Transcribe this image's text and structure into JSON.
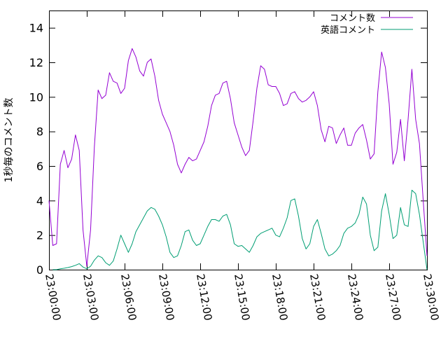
{
  "chart_data": {
    "type": "line",
    "title": "",
    "xlabel": "",
    "ylabel": "1秒毎のコメント数",
    "x_ticks": [
      "23:00:00",
      "23:03:00",
      "23:06:00",
      "23:09:00",
      "23:12:00",
      "23:15:00",
      "23:18:00",
      "23:21:00",
      "23:24:00",
      "23:27:00",
      "23:30:00"
    ],
    "x_range_minutes": [
      0,
      30
    ],
    "ylim": [
      0,
      15
    ],
    "y_ticks": [
      0,
      2,
      4,
      6,
      8,
      10,
      12,
      14
    ],
    "legend_position": "top-right",
    "grid": false,
    "series": [
      {
        "name": "コメント数",
        "color": "#9400d3",
        "x": [
          0.0,
          0.3,
          0.6,
          0.9,
          1.2,
          1.5,
          1.8,
          2.1,
          2.4,
          2.7,
          3.0,
          3.3,
          3.6,
          3.9,
          4.2,
          4.5,
          4.8,
          5.1,
          5.4,
          5.7,
          6.0,
          6.3,
          6.6,
          6.9,
          7.2,
          7.5,
          7.8,
          8.1,
          8.4,
          8.7,
          9.0,
          9.3,
          9.6,
          9.9,
          10.2,
          10.5,
          10.8,
          11.1,
          11.4,
          11.7,
          12.0,
          12.3,
          12.6,
          12.9,
          13.2,
          13.5,
          13.8,
          14.1,
          14.4,
          14.7,
          15.0,
          15.3,
          15.6,
          15.9,
          16.2,
          16.5,
          16.8,
          17.1,
          17.4,
          17.7,
          18.0,
          18.3,
          18.6,
          18.9,
          19.2,
          19.5,
          19.8,
          20.1,
          20.4,
          20.7,
          21.0,
          21.3,
          21.6,
          21.9,
          22.2,
          22.5,
          22.8,
          23.1,
          23.4,
          23.7,
          24.0,
          24.3,
          24.6,
          24.9,
          25.2,
          25.5,
          25.8,
          26.1,
          26.4,
          26.7,
          27.0,
          27.3,
          27.6,
          27.9,
          28.2,
          28.5,
          28.8,
          29.1,
          29.4,
          29.7,
          30.0
        ],
        "values": [
          4.0,
          1.4,
          1.5,
          6.1,
          6.9,
          5.9,
          6.4,
          7.8,
          6.9,
          2.3,
          0.2,
          2.3,
          7.1,
          10.4,
          9.9,
          10.1,
          11.4,
          10.9,
          10.8,
          10.2,
          10.5,
          12.1,
          12.8,
          12.3,
          11.5,
          11.2,
          12.0,
          12.2,
          11.2,
          9.8,
          9.0,
          8.5,
          8.0,
          7.2,
          6.1,
          5.6,
          6.1,
          6.5,
          6.3,
          6.4,
          6.9,
          7.4,
          8.3,
          9.5,
          10.1,
          10.2,
          10.8,
          10.9,
          9.9,
          8.5,
          7.8,
          7.1,
          6.6,
          6.9,
          8.6,
          10.5,
          11.8,
          11.6,
          10.7,
          10.6,
          10.6,
          10.2,
          9.5,
          9.6,
          10.2,
          10.3,
          9.9,
          9.7,
          9.8,
          10.0,
          10.3,
          9.5,
          8.1,
          7.4,
          8.3,
          8.2,
          7.3,
          7.8,
          8.2,
          7.2,
          7.2,
          7.9,
          8.2,
          8.4,
          7.5,
          6.4,
          6.7,
          10.3,
          12.6,
          11.7,
          9.6,
          6.1,
          6.8,
          8.7,
          6.3,
          8.7,
          11.6,
          8.7,
          7.3,
          4.0,
          0.8
        ]
      },
      {
        "name": "英語コメント",
        "color": "#009e73",
        "x": [
          0.3,
          0.6,
          0.9,
          1.2,
          1.5,
          1.8,
          2.1,
          2.4,
          2.7,
          3.0,
          3.3,
          3.6,
          3.9,
          4.2,
          4.5,
          4.8,
          5.1,
          5.4,
          5.7,
          6.0,
          6.3,
          6.6,
          6.9,
          7.2,
          7.5,
          7.8,
          8.1,
          8.4,
          8.7,
          9.0,
          9.3,
          9.6,
          9.9,
          10.2,
          10.5,
          10.8,
          11.1,
          11.4,
          11.7,
          12.0,
          12.3,
          12.6,
          12.9,
          13.2,
          13.5,
          13.8,
          14.1,
          14.4,
          14.7,
          15.0,
          15.3,
          15.6,
          15.9,
          16.2,
          16.5,
          16.8,
          17.1,
          17.4,
          17.7,
          18.0,
          18.3,
          18.6,
          18.9,
          19.2,
          19.5,
          19.8,
          20.1,
          20.4,
          20.7,
          21.0,
          21.3,
          21.6,
          21.9,
          22.2,
          22.5,
          22.8,
          23.1,
          23.4,
          23.7,
          24.0,
          24.3,
          24.6,
          24.9,
          25.2,
          25.5,
          25.8,
          26.1,
          26.4,
          26.7,
          27.0,
          27.3,
          27.6,
          27.9,
          28.2,
          28.5,
          28.8,
          29.1,
          29.4,
          29.7,
          30.0
        ],
        "values": [
          0.0,
          0.0,
          0.05,
          0.08,
          0.12,
          0.18,
          0.25,
          0.35,
          0.15,
          0.05,
          0.2,
          0.55,
          0.8,
          0.7,
          0.4,
          0.25,
          0.5,
          1.2,
          2.0,
          1.5,
          1.0,
          1.5,
          2.2,
          2.6,
          3.0,
          3.4,
          3.6,
          3.5,
          3.1,
          2.6,
          1.9,
          1.0,
          0.7,
          0.8,
          1.4,
          2.2,
          2.3,
          1.7,
          1.4,
          1.5,
          2.0,
          2.5,
          2.9,
          2.9,
          2.8,
          3.1,
          3.2,
          2.6,
          1.5,
          1.35,
          1.4,
          1.2,
          1.0,
          1.4,
          1.9,
          2.1,
          2.2,
          2.3,
          2.4,
          2.0,
          1.9,
          2.4,
          3.0,
          4.0,
          4.1,
          3.1,
          1.8,
          1.2,
          1.5,
          2.5,
          2.9,
          2.1,
          1.2,
          0.8,
          0.9,
          1.1,
          1.4,
          2.1,
          2.4,
          2.5,
          2.7,
          3.2,
          4.2,
          3.8,
          2.0,
          1.1,
          1.3,
          3.4,
          4.4,
          3.2,
          1.8,
          2.0,
          3.6,
          2.6,
          2.5,
          4.6,
          4.4,
          3.2,
          1.6,
          0.0
        ]
      }
    ]
  }
}
